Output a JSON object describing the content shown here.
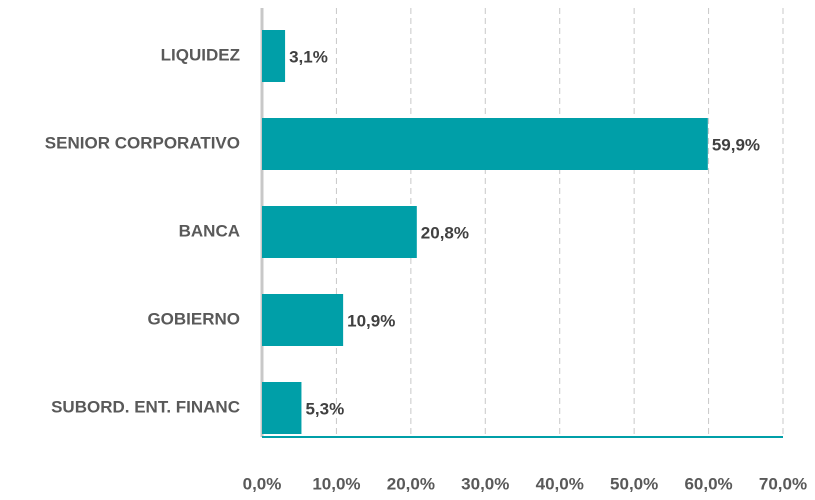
{
  "chart_data": {
    "type": "barh",
    "categories": [
      "LIQUIDEZ",
      "SENIOR CORPORATIVO",
      "BANCA",
      "GOBIERNO",
      "SUBORD. ENT. FINANC"
    ],
    "values": [
      3.1,
      59.9,
      20.8,
      10.9,
      5.3
    ],
    "value_labels": [
      "3,1%",
      "59,9%",
      "20,8%",
      "10,9%",
      "5,3%"
    ],
    "color": "#009fa8",
    "xlim": [
      0,
      70
    ],
    "xticks": [
      {
        "value": 0,
        "label": "0,0%"
      },
      {
        "value": 10,
        "label": "10,0%"
      },
      {
        "value": 20,
        "label": "20,0%"
      },
      {
        "value": 30,
        "label": "30,0%"
      },
      {
        "value": 40,
        "label": "40,0%"
      },
      {
        "value": 50,
        "label": "50,0%"
      },
      {
        "value": 60,
        "label": "60,0%"
      },
      {
        "value": 70,
        "label": "70,0%"
      }
    ],
    "grid": true
  }
}
